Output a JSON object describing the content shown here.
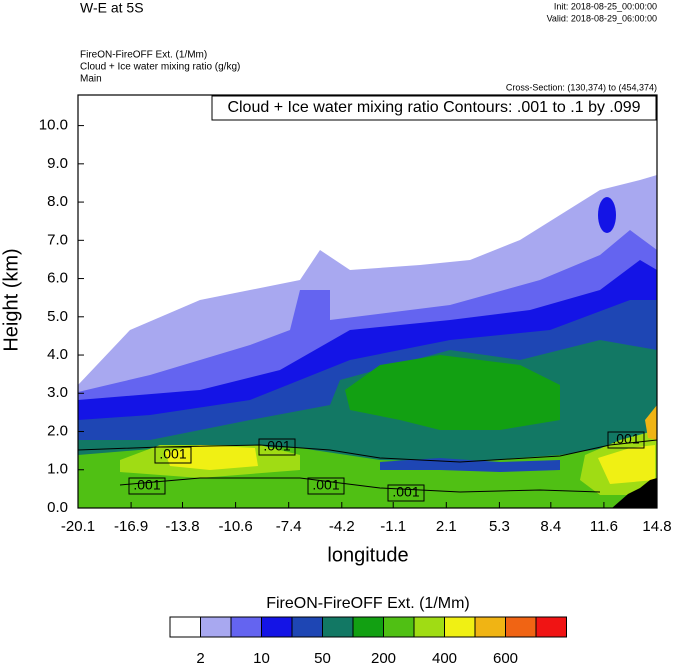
{
  "chart_data": {
    "type": "contour",
    "title": "W-E at 5S",
    "init": "Init: 2018-08-25_00:00:00",
    "valid": "Valid: 2018-08-29_06:00:00",
    "subtitles": [
      "FireON-FireOFF Ext.   (1/Mm)",
      "Cloud + Ice water mixing ratio   (g/kg)",
      "Main"
    ],
    "cross_section": "Cross-Section: (130,374) to (454,374)",
    "contour_info": "Cloud + Ice water mixing ratio Contours: .001 to .1 by .099",
    "contour_labels": [
      ".001",
      ".001",
      ".001",
      ".001",
      ".001",
      ".001"
    ],
    "x_label": "longitude",
    "y_label": "Height (km)",
    "xlim": [
      -20.1,
      14.8
    ],
    "xticks": [
      -20.1,
      -16.9,
      -13.8,
      -10.6,
      -7.4,
      -4.2,
      -1.1,
      2.1,
      5.3,
      8.4,
      11.6,
      14.8
    ],
    "ylim": [
      0,
      10.8
    ],
    "yticks": [
      {
        "value": 0,
        "label": "0.0"
      },
      {
        "value": 1,
        "label": "1.0"
      },
      {
        "value": 2,
        "label": "2.0"
      },
      {
        "value": 3,
        "label": "3.0"
      },
      {
        "value": 4,
        "label": "4.0"
      },
      {
        "value": 5,
        "label": "5.0"
      },
      {
        "value": 6,
        "label": "6.0"
      },
      {
        "value": 7,
        "label": "7.0"
      },
      {
        "value": 8,
        "label": "8.0"
      },
      {
        "value": 9,
        "label": "9.0"
      },
      {
        "value": 10,
        "label": "10.0"
      }
    ],
    "colorbar": {
      "title": "FireON-FireOFF Ext.  (1/Mm)",
      "colors": [
        "#ffffff",
        "#a8a8f0",
        "#6464f0",
        "#1414e6",
        "#1e46b4",
        "#127864",
        "#12a012",
        "#50c014",
        "#a0dc14",
        "#f0f014",
        "#f0b414",
        "#f06414",
        "#f01414"
      ],
      "labels": [
        2,
        10,
        50,
        200,
        400,
        600
      ]
    }
  }
}
